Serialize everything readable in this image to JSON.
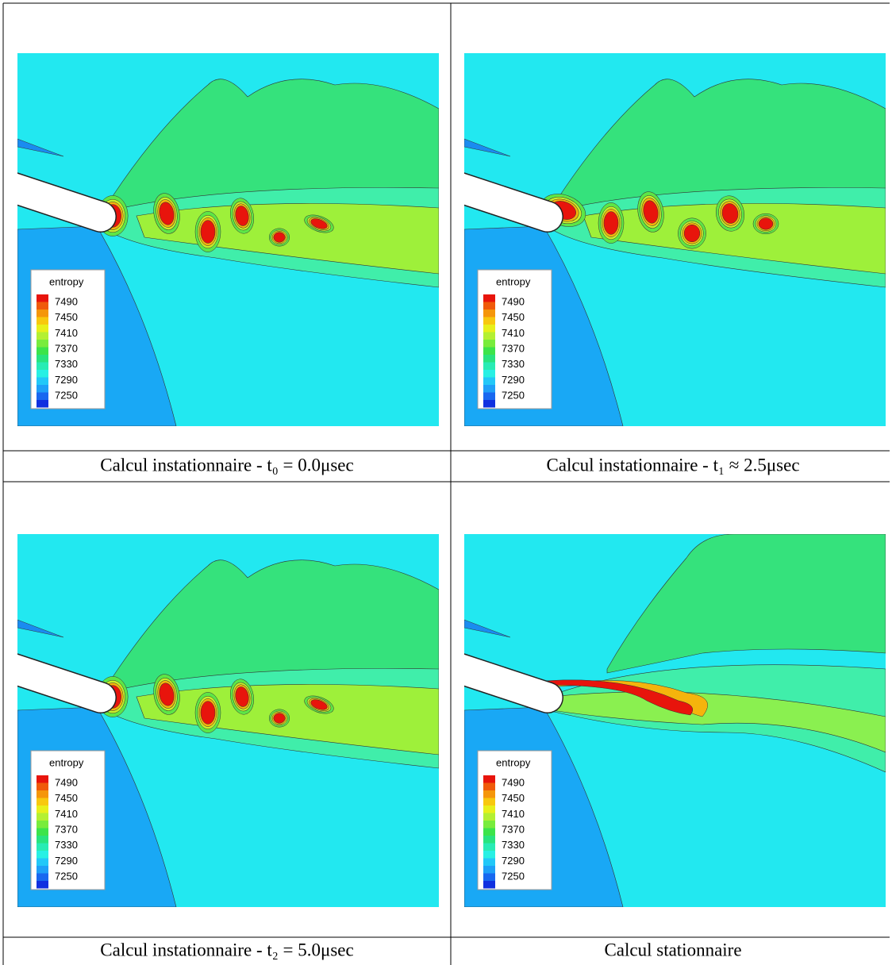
{
  "legend": {
    "title": "entropy",
    "labels": [
      7490,
      7450,
      7410,
      7370,
      7330,
      7290,
      7250
    ]
  },
  "panels": [
    {
      "caption": "Calcul instationnaire - t₀ = 0.0μsec"
    },
    {
      "caption": "Calcul instationnaire - t₁ ≈ 2.5μsec"
    },
    {
      "caption": "Calcul instationnaire - t₂ = 5.0μsec"
    },
    {
      "caption": "Calcul stationnaire"
    }
  ]
}
